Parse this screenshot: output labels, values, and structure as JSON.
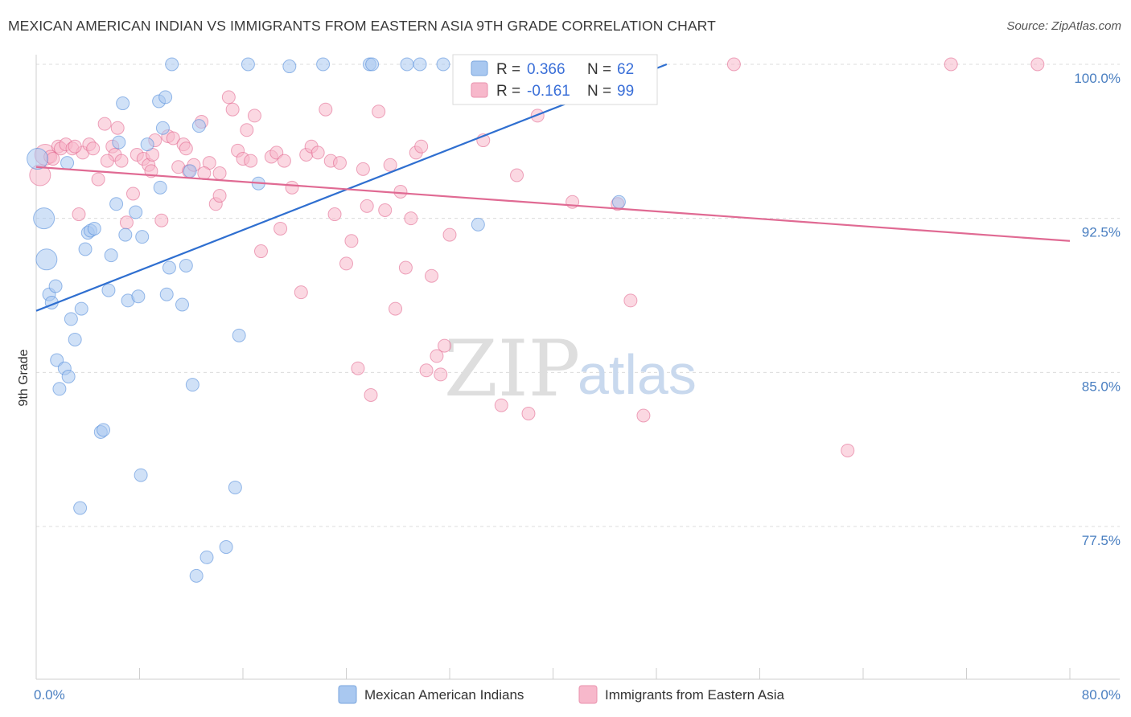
{
  "header": {
    "title": "MEXICAN AMERICAN INDIAN VS IMMIGRANTS FROM EASTERN ASIA 9TH GRADE CORRELATION CHART",
    "source": "Source: ZipAtlas.com"
  },
  "watermark": {
    "zip": "ZIP",
    "atlas": "atlas"
  },
  "legend_box": {
    "rows": [
      {
        "r_label": "R =",
        "r_value": "0.366",
        "n_label": "N =",
        "n_value": "62",
        "color": "#a9c8f0"
      },
      {
        "r_label": "R =",
        "r_value": "-0.161",
        "n_label": "N =",
        "n_value": "99",
        "color": "#f7b8cb"
      }
    ]
  },
  "bottom_legend": {
    "items": [
      {
        "label": "Mexican American Indians",
        "color": "#a9c8f0"
      },
      {
        "label": "Immigrants from Eastern Asia",
        "color": "#f7b8cb"
      }
    ]
  },
  "chart_data": {
    "type": "scatter",
    "title": "MEXICAN AMERICAN INDIAN VS IMMIGRANTS FROM EASTERN ASIA 9TH GRADE CORRELATION CHART",
    "xlabel": "",
    "ylabel": "9th Grade",
    "xlim": [
      0,
      80
    ],
    "ylim": [
      70,
      100.5
    ],
    "x_tick_labels": [
      "0.0%",
      "80.0%"
    ],
    "y_ticks": [
      77.5,
      85.0,
      92.5,
      100.0
    ],
    "y_tick_labels": [
      "77.5%",
      "85.0%",
      "92.5%",
      "100.0%"
    ],
    "grid": true,
    "legend_position": "top-center",
    "series": [
      {
        "name": "Mexican American Indians",
        "color": "#4a86d8",
        "fill": "#a9c8f0",
        "r": 0.366,
        "n": 62,
        "trend": {
          "x": [
            0,
            48.8
          ],
          "y": [
            88.0,
            100.0
          ]
        },
        "points": [
          [
            0.1,
            95.4
          ],
          [
            0.6,
            92.5
          ],
          [
            0.8,
            90.5
          ],
          [
            1.0,
            88.8
          ],
          [
            1.2,
            88.4
          ],
          [
            1.5,
            89.2
          ],
          [
            1.6,
            85.6
          ],
          [
            1.8,
            84.2
          ],
          [
            2.2,
            85.2
          ],
          [
            2.5,
            84.8
          ],
          [
            2.7,
            87.6
          ],
          [
            3.0,
            86.6
          ],
          [
            3.5,
            88.1
          ],
          [
            3.8,
            91.0
          ],
          [
            4.0,
            91.8
          ],
          [
            4.2,
            91.9
          ],
          [
            4.5,
            92.0
          ],
          [
            5.0,
            82.1
          ],
          [
            5.2,
            82.2
          ],
          [
            5.6,
            89.0
          ],
          [
            5.8,
            90.7
          ],
          [
            6.2,
            93.2
          ],
          [
            6.4,
            96.2
          ],
          [
            6.7,
            98.1
          ],
          [
            6.9,
            91.7
          ],
          [
            7.1,
            88.5
          ],
          [
            7.7,
            92.8
          ],
          [
            7.9,
            88.7
          ],
          [
            8.2,
            91.6
          ],
          [
            8.6,
            96.1
          ],
          [
            9.5,
            98.2
          ],
          [
            9.6,
            94.0
          ],
          [
            9.8,
            96.9
          ],
          [
            10.1,
            88.8
          ],
          [
            10.3,
            90.1
          ],
          [
            10.5,
            100.0
          ],
          [
            11.3,
            88.3
          ],
          [
            11.6,
            90.2
          ],
          [
            11.9,
            94.8
          ],
          [
            12.1,
            84.4
          ],
          [
            12.6,
            97.0
          ],
          [
            13.2,
            76.0
          ],
          [
            14.7,
            76.5
          ],
          [
            15.4,
            79.4
          ],
          [
            15.7,
            86.8
          ],
          [
            16.4,
            100.0
          ],
          [
            17.2,
            94.2
          ],
          [
            19.6,
            99.9
          ],
          [
            22.2,
            100.0
          ],
          [
            25.8,
            100.0
          ],
          [
            26.0,
            100.0
          ],
          [
            28.7,
            100.0
          ],
          [
            29.7,
            100.0
          ],
          [
            31.5,
            100.0
          ],
          [
            34.2,
            92.2
          ],
          [
            38.0,
            100.0
          ],
          [
            45.1,
            93.3
          ],
          [
            8.1,
            80.0
          ],
          [
            3.4,
            78.4
          ],
          [
            12.4,
            75.1
          ],
          [
            10.0,
            98.4
          ],
          [
            2.4,
            95.2
          ]
        ]
      },
      {
        "name": "Immigrants from Eastern Asia",
        "color": "#e0608a",
        "fill": "#f7b8cb",
        "r": -0.161,
        "n": 99,
        "trend": {
          "x": [
            0,
            80
          ],
          "y": [
            95.0,
            91.4
          ]
        },
        "points": [
          [
            0.3,
            94.6
          ],
          [
            0.7,
            95.6
          ],
          [
            1.1,
            95.5
          ],
          [
            1.3,
            95.4
          ],
          [
            1.7,
            96.0
          ],
          [
            1.9,
            95.9
          ],
          [
            2.3,
            96.1
          ],
          [
            2.8,
            95.9
          ],
          [
            3.3,
            92.7
          ],
          [
            3.6,
            95.7
          ],
          [
            4.1,
            96.1
          ],
          [
            4.4,
            95.9
          ],
          [
            4.8,
            94.4
          ],
          [
            5.3,
            97.1
          ],
          [
            5.9,
            96.0
          ],
          [
            6.1,
            95.6
          ],
          [
            6.3,
            96.9
          ],
          [
            6.6,
            95.3
          ],
          [
            7.0,
            92.3
          ],
          [
            7.5,
            93.7
          ],
          [
            7.8,
            95.6
          ],
          [
            8.3,
            95.4
          ],
          [
            8.7,
            95.1
          ],
          [
            8.9,
            94.8
          ],
          [
            9.2,
            96.3
          ],
          [
            9.7,
            92.4
          ],
          [
            10.2,
            96.5
          ],
          [
            10.6,
            96.4
          ],
          [
            11.0,
            95.0
          ],
          [
            11.4,
            96.1
          ],
          [
            11.8,
            94.8
          ],
          [
            12.2,
            95.1
          ],
          [
            12.8,
            97.2
          ],
          [
            13.4,
            95.2
          ],
          [
            13.9,
            93.2
          ],
          [
            14.2,
            93.6
          ],
          [
            14.9,
            98.4
          ],
          [
            15.2,
            97.8
          ],
          [
            15.6,
            95.8
          ],
          [
            16.0,
            95.4
          ],
          [
            16.6,
            95.3
          ],
          [
            16.9,
            97.5
          ],
          [
            17.4,
            90.9
          ],
          [
            18.2,
            95.5
          ],
          [
            18.6,
            95.7
          ],
          [
            18.9,
            92.0
          ],
          [
            19.2,
            95.3
          ],
          [
            19.8,
            94.0
          ],
          [
            20.5,
            88.9
          ],
          [
            20.9,
            95.6
          ],
          [
            21.3,
            96.0
          ],
          [
            21.8,
            95.7
          ],
          [
            22.4,
            97.8
          ],
          [
            22.8,
            95.3
          ],
          [
            23.1,
            92.7
          ],
          [
            23.5,
            95.2
          ],
          [
            24.0,
            90.3
          ],
          [
            24.4,
            91.4
          ],
          [
            24.9,
            85.2
          ],
          [
            25.3,
            94.9
          ],
          [
            25.6,
            93.1
          ],
          [
            25.9,
            83.9
          ],
          [
            26.5,
            97.7
          ],
          [
            27.0,
            92.9
          ],
          [
            27.4,
            95.1
          ],
          [
            27.8,
            88.1
          ],
          [
            28.2,
            93.8
          ],
          [
            28.6,
            90.1
          ],
          [
            29.0,
            92.5
          ],
          [
            29.4,
            95.7
          ],
          [
            29.8,
            96.0
          ],
          [
            30.2,
            85.1
          ],
          [
            30.6,
            89.7
          ],
          [
            31.0,
            85.8
          ],
          [
            31.3,
            84.9
          ],
          [
            31.6,
            86.3
          ],
          [
            32.0,
            91.7
          ],
          [
            33.1,
            100.0
          ],
          [
            34.6,
            96.3
          ],
          [
            36.0,
            83.4
          ],
          [
            37.2,
            94.6
          ],
          [
            38.1,
            83.0
          ],
          [
            38.8,
            97.5
          ],
          [
            39.8,
            100.0
          ],
          [
            41.5,
            93.3
          ],
          [
            45.0,
            93.2
          ],
          [
            46.0,
            88.5
          ],
          [
            47.0,
            82.9
          ],
          [
            54.0,
            100.0
          ],
          [
            62.8,
            81.2
          ],
          [
            70.8,
            100.0
          ],
          [
            77.5,
            100.0
          ],
          [
            14.2,
            94.7
          ],
          [
            5.5,
            95.3
          ],
          [
            3.0,
            96.0
          ],
          [
            9.0,
            95.6
          ],
          [
            16.3,
            96.8
          ],
          [
            11.6,
            95.9
          ],
          [
            13.0,
            94.7
          ]
        ]
      }
    ]
  }
}
